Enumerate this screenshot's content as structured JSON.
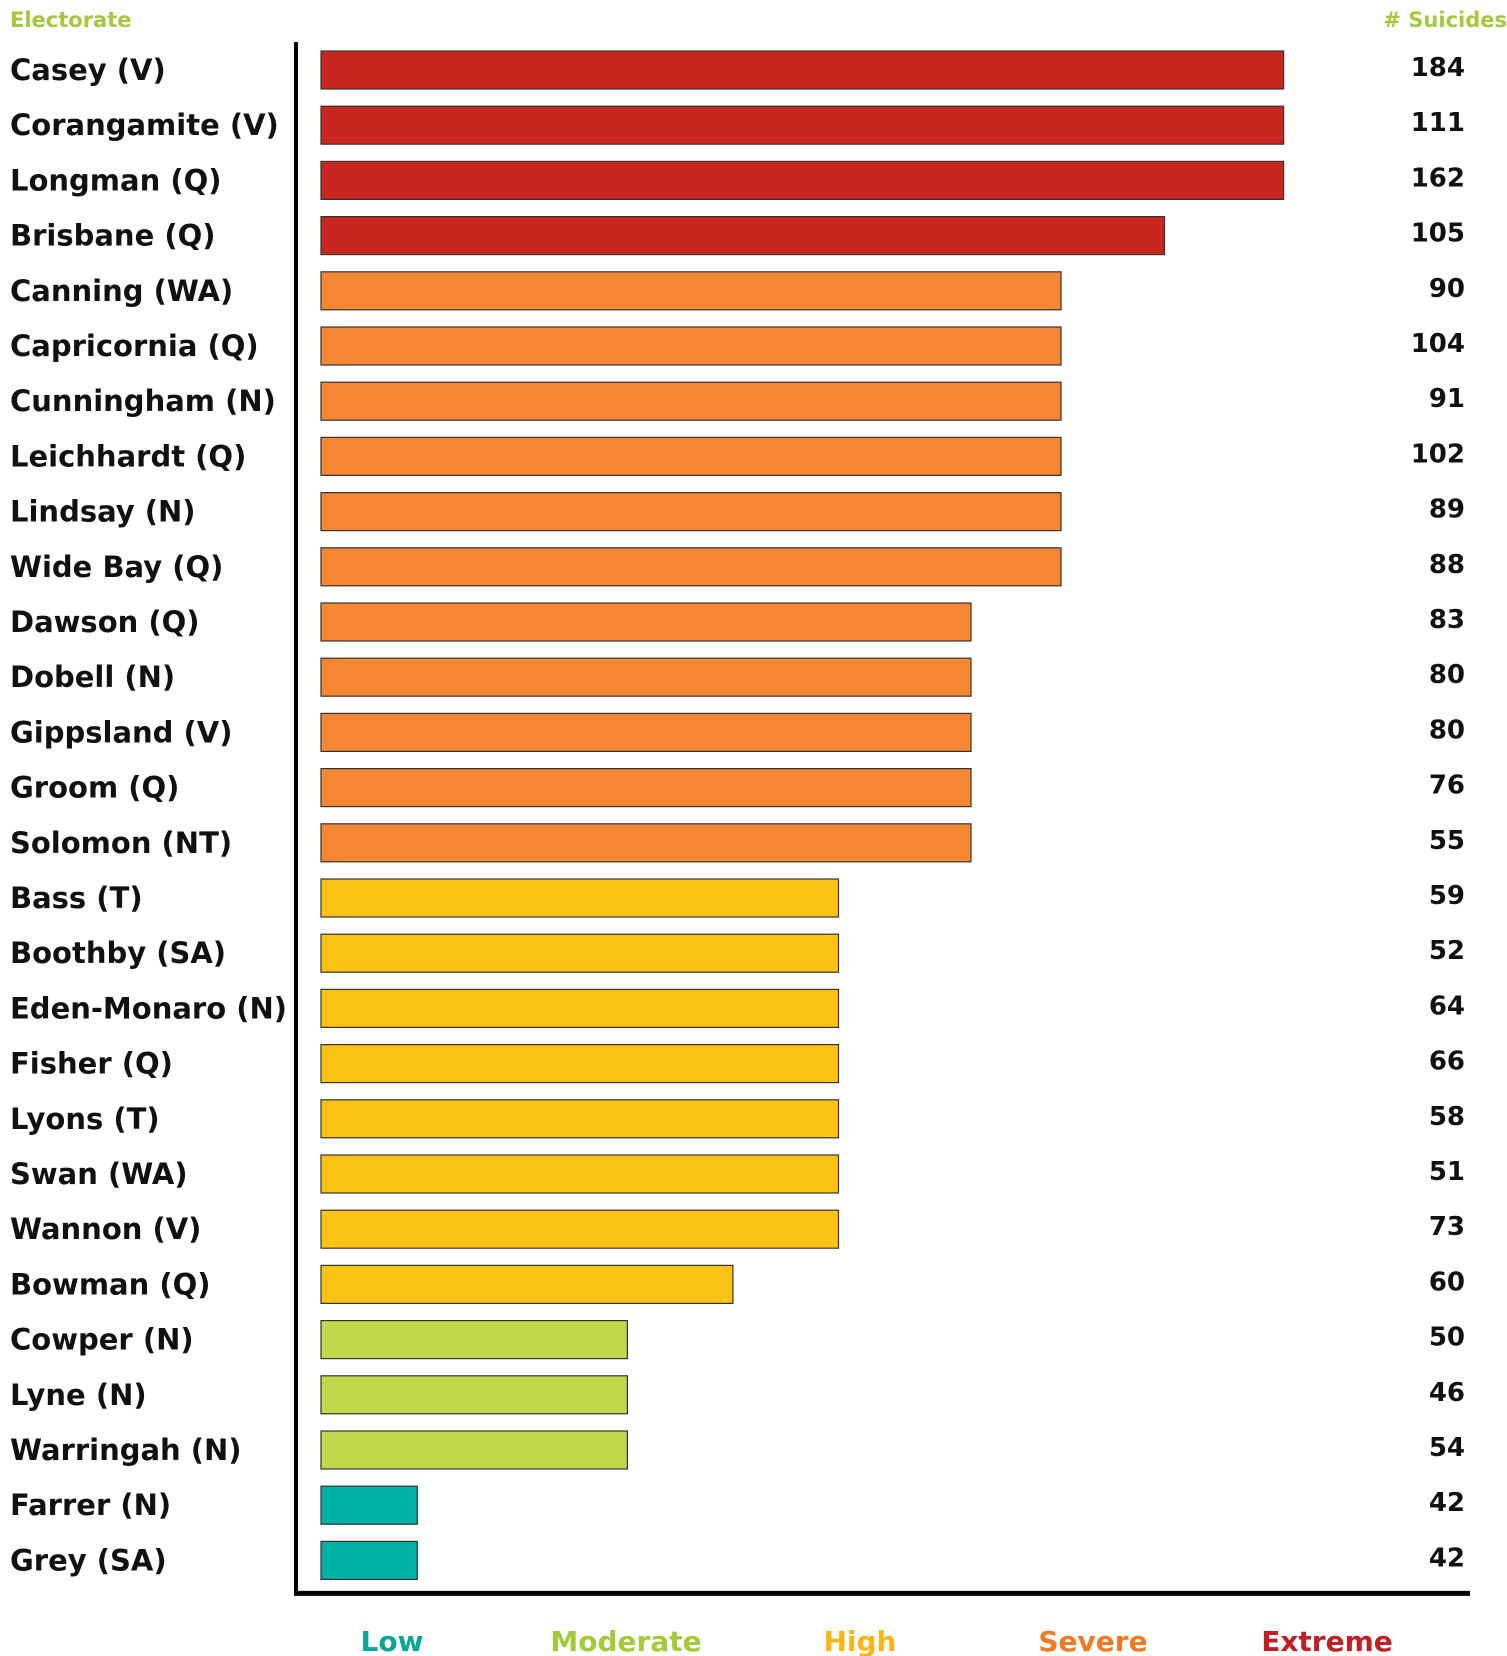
{
  "chart_data": {
    "type": "bar",
    "orientation": "horizontal",
    "header_left": "Electorate",
    "header_right": "# Suicides",
    "colors": {
      "header": "#a4c93a",
      "Extreme": "#c9261f",
      "Severe": "#f58634",
      "High": "#fdc314",
      "Moderate": "#bfd94b",
      "Low": "#00b2a5",
      "bar_outline": "#333333",
      "axis": "#000000"
    },
    "risk_scale": [
      "Low",
      "Moderate",
      "High",
      "Severe",
      "Extreme"
    ],
    "risk_scale_colors": [
      "#0aa796",
      "#a4c93a",
      "#fdb515",
      "#f37a24",
      "#c21f25"
    ],
    "rows": [
      {
        "electorate": "Casey (V)",
        "suicides": 184,
        "risk": "Extreme"
      },
      {
        "electorate": "Corangamite (V)",
        "suicides": 111,
        "risk": "Extreme"
      },
      {
        "electorate": "Longman (Q)",
        "suicides": 162,
        "risk": "Extreme"
      },
      {
        "electorate": "Brisbane (Q)",
        "suicides": 105,
        "risk": "Extreme"
      },
      {
        "electorate": "Canning (WA)",
        "suicides": 90,
        "risk": "Severe"
      },
      {
        "electorate": "Capricornia (Q)",
        "suicides": 104,
        "risk": "Severe"
      },
      {
        "electorate": "Cunningham (N)",
        "suicides": 91,
        "risk": "Severe"
      },
      {
        "electorate": "Leichhardt (Q)",
        "suicides": 102,
        "risk": "Severe"
      },
      {
        "electorate": "Lindsay (N)",
        "suicides": 89,
        "risk": "Severe"
      },
      {
        "electorate": "Wide Bay (Q)",
        "suicides": 88,
        "risk": "Severe"
      },
      {
        "electorate": "Dawson (Q)",
        "suicides": 83,
        "risk": "Severe"
      },
      {
        "electorate": "Dobell (N)",
        "suicides": 80,
        "risk": "Severe"
      },
      {
        "electorate": "Gippsland (V)",
        "suicides": 80,
        "risk": "Severe"
      },
      {
        "electorate": "Groom (Q)",
        "suicides": 76,
        "risk": "Severe"
      },
      {
        "electorate": "Solomon (NT)",
        "suicides": 55,
        "risk": "Severe"
      },
      {
        "electorate": "Bass (T)",
        "suicides": 59,
        "risk": "High"
      },
      {
        "electorate": "Boothby (SA)",
        "suicides": 52,
        "risk": "High"
      },
      {
        "electorate": "Eden-Monaro (N)",
        "suicides": 64,
        "risk": "High"
      },
      {
        "electorate": "Fisher (Q)",
        "suicides": 66,
        "risk": "High"
      },
      {
        "electorate": "Lyons (T)",
        "suicides": 58,
        "risk": "High"
      },
      {
        "electorate": "Swan (WA)",
        "suicides": 51,
        "risk": "High"
      },
      {
        "electorate": "Wannon (V)",
        "suicides": 73,
        "risk": "High"
      },
      {
        "electorate": "Bowman (Q)",
        "suicides": 60,
        "risk": "High"
      },
      {
        "electorate": "Cowper (N)",
        "suicides": 50,
        "risk": "Moderate"
      },
      {
        "electorate": "Lyne (N)",
        "suicides": 46,
        "risk": "Moderate"
      },
      {
        "electorate": "Warringah (N)",
        "suicides": 54,
        "risk": "Moderate"
      },
      {
        "electorate": "Farrer (N)",
        "suicides": 42,
        "risk": "Low"
      },
      {
        "electorate": "Grey (SA)",
        "suicides": 42,
        "risk": "Low"
      }
    ],
    "bar_length_scale": {
      "Low": 1,
      "Moderate": 3,
      "High": 5,
      "High (Bowman)": 4,
      "Severe": 6.3,
      "Severe (upper)": 7.15,
      "Extreme (Brisbane)": 8.15,
      "Extreme": 9.3
    },
    "bar_levels": [
      9.3,
      9.3,
      9.3,
      8.15,
      7.15,
      7.15,
      7.15,
      7.15,
      7.15,
      7.15,
      6.28,
      6.28,
      6.28,
      6.28,
      6.28,
      5.0,
      5.0,
      5.0,
      5.0,
      5.0,
      5.0,
      5.0,
      3.98,
      2.96,
      2.96,
      2.96,
      0.93,
      0.93
    ],
    "bar_levels_max": 10
  }
}
